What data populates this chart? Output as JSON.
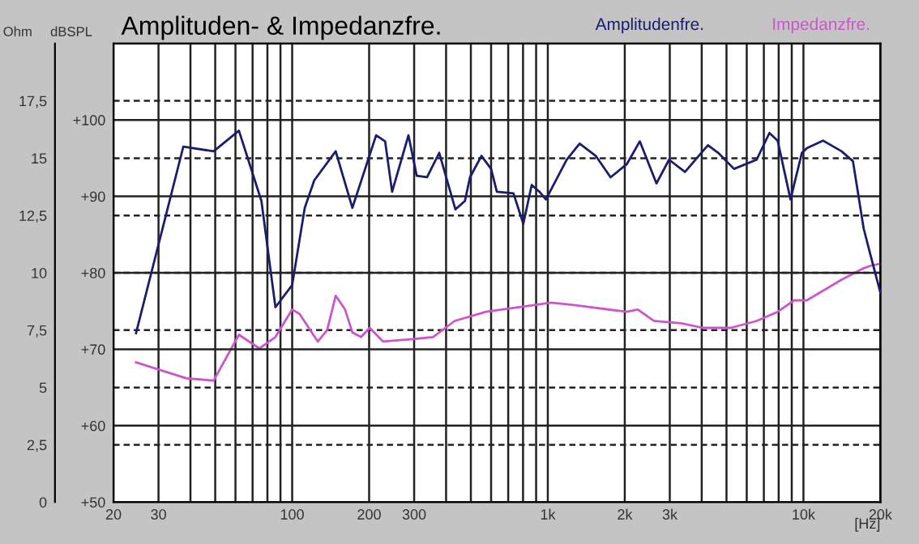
{
  "chart_data": {
    "type": "line",
    "title": "Amplituden- & Impedanzfre.",
    "xlabel": "[Hz]",
    "ylabel": "dBSPL",
    "y2label": "Ohm",
    "log": "x",
    "grid": true,
    "legend": "top right",
    "xlim": [
      20,
      20000
    ],
    "xticks": [
      20,
      30,
      {
        "value": 40,
        "label": null
      },
      {
        "value": 50,
        "label": null
      },
      {
        "value": 60,
        "label": null
      },
      {
        "value": 70,
        "label": null
      },
      {
        "value": 80,
        "label": null
      },
      {
        "value": 90,
        "label": null
      },
      100,
      200,
      300,
      {
        "value": 400,
        "label": null
      },
      {
        "value": 500,
        "label": null
      },
      {
        "value": 600,
        "label": null
      },
      {
        "value": 700,
        "label": null
      },
      {
        "value": 800,
        "label": null
      },
      {
        "value": 900,
        "label": null
      },
      {
        "value": 1000,
        "label": "1k"
      },
      {
        "value": 2000,
        "label": "2k"
      },
      {
        "value": 3000,
        "label": "3k"
      },
      {
        "value": 4000,
        "label": null
      },
      {
        "value": 5000,
        "label": null
      },
      {
        "value": 6000,
        "label": null
      },
      {
        "value": 7000,
        "label": null
      },
      {
        "value": 8000,
        "label": null
      },
      {
        "value": 9000,
        "label": null
      },
      {
        "value": 10000,
        "label": "10k"
      },
      {
        "value": 20000,
        "label": "20k"
      }
    ],
    "ylim": [
      50,
      110
    ],
    "yticks": [
      {
        "value": 50,
        "label": "+50"
      },
      {
        "value": 60,
        "label": "+60"
      },
      {
        "value": 70,
        "label": "+70"
      },
      {
        "value": 80,
        "label": "+80"
      },
      {
        "value": 90,
        "label": "+90"
      },
      {
        "value": 100,
        "label": "+100"
      }
    ],
    "y2lim": [
      0,
      20
    ],
    "y2ticks": [
      0,
      {
        "value": 2.5,
        "label": "2,5"
      },
      5,
      {
        "value": 7.5,
        "label": "7,5"
      },
      10,
      {
        "value": 12.5,
        "label": "12,5"
      },
      15,
      {
        "value": 17.5,
        "label": "17,5"
      }
    ],
    "series": [
      {
        "name": "Amplitudenfre.",
        "color": "#1c1c6e",
        "x": [
          24.5,
          37.5,
          49.3,
          61.9,
          75.8,
          86,
          100,
          112,
          122,
          148,
          172,
          213,
          231,
          246,
          285,
          307,
          337,
          376,
          435,
          474,
          496,
          550,
          600,
          632,
          734,
          802,
          865,
          928,
          983,
          1185,
          1332,
          1540,
          1760,
          2035,
          2290,
          2660,
          2980,
          3440,
          4230,
          4640,
          5350,
          6560,
          7360,
          7925,
          8900,
          9860,
          10310,
          11930,
          14100,
          15620,
          17200,
          18200,
          20000
        ],
        "values": [
          72.1,
          96.5,
          95.9,
          98.6,
          89.4,
          75.5,
          78.4,
          88.5,
          92.1,
          95.9,
          88.5,
          98.0,
          97.2,
          90.6,
          98.0,
          92.7,
          92.5,
          95.7,
          88.3,
          89.4,
          92.5,
          95.3,
          93.6,
          90.6,
          90.4,
          86.4,
          91.5,
          90.6,
          89.6,
          94.8,
          96.9,
          95.3,
          92.5,
          94.2,
          97.2,
          91.7,
          94.8,
          93.2,
          96.7,
          95.7,
          93.6,
          94.8,
          98.3,
          97.3,
          89.6,
          95.7,
          96.3,
          97.3,
          95.9,
          94.6,
          85.8,
          82.6,
          77.4
        ]
      },
      {
        "name": "Impedanzfre.",
        "color": "#cc55cc",
        "axis": "y2",
        "x": [
          24.5,
          38.6,
          49.3,
          61.9,
          74.5,
          86,
          100,
          107,
          126,
          137,
          148,
          161,
          172,
          186,
          201,
          227,
          290,
          356,
          432,
          573,
          1030,
          1250,
          2035,
          2250,
          2600,
          3330,
          4040,
          5200,
          6560,
          7925,
          9200,
          10310,
          14100,
          17200,
          18200,
          20000
        ],
        "values": [
          6.1,
          5.4,
          5.3,
          7.3,
          6.7,
          7.2,
          8.4,
          8.2,
          7.0,
          7.5,
          9.0,
          8.4,
          7.4,
          7.2,
          7.6,
          7.0,
          7.1,
          7.2,
          7.9,
          8.3,
          8.7,
          8.6,
          8.3,
          8.4,
          7.9,
          7.8,
          7.6,
          7.6,
          7.9,
          8.3,
          8.8,
          8.8,
          9.7,
          10.2,
          10.3,
          10.4
        ]
      }
    ]
  }
}
